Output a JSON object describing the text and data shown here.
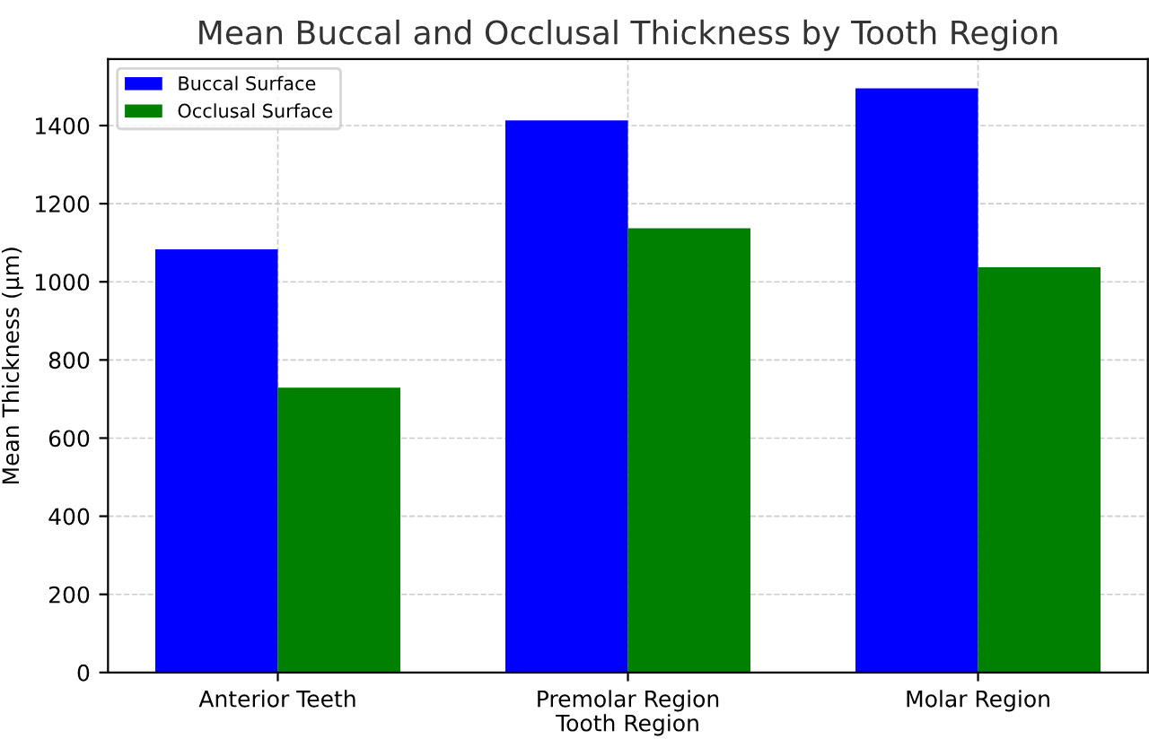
{
  "chart_data": {
    "type": "bar",
    "title": "Mean Buccal and Occlusal Thickness by Tooth Region",
    "xlabel": "Tooth Region",
    "ylabel": "Mean Thickness (µm)",
    "categories": [
      "Anterior Teeth",
      "Premolar Region",
      "Molar Region"
    ],
    "series": [
      {
        "name": "Buccal Surface",
        "color": "#0000ff",
        "values": [
          1083,
          1413,
          1495
        ]
      },
      {
        "name": "Occlusal Surface",
        "color": "#008000",
        "values": [
          729,
          1137,
          1037
        ]
      }
    ],
    "ylim": [
      0,
      1570
    ],
    "yticks": [
      0,
      200,
      400,
      600,
      800,
      1000,
      1200,
      1400
    ],
    "grid": true,
    "legend": "top left"
  }
}
